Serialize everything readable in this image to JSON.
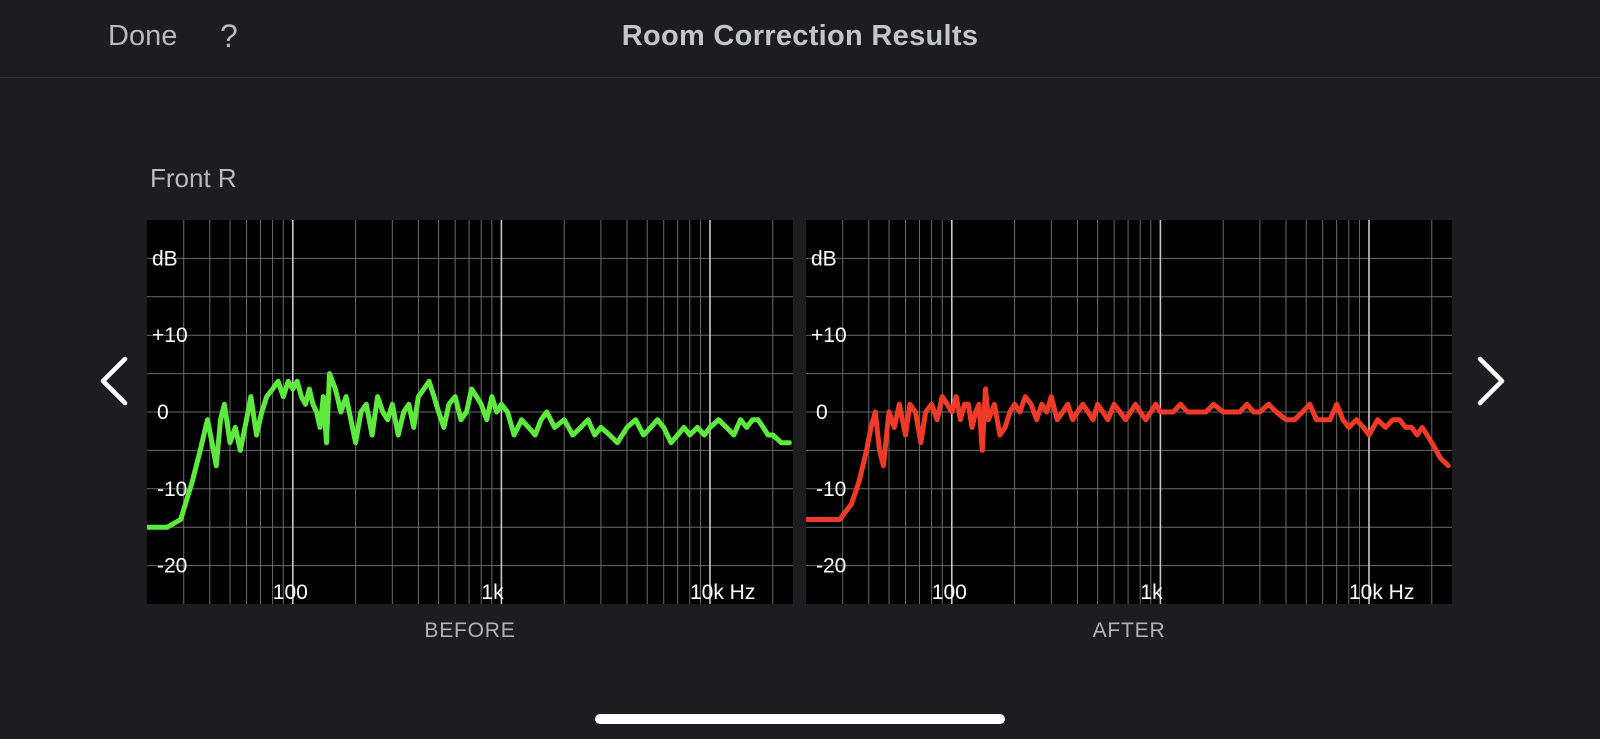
{
  "header": {
    "done_label": "Done",
    "help_label": "?",
    "title": "Room Correction Results"
  },
  "speaker_label": "Front R",
  "nav": {
    "prev_icon": "chevron-left-icon",
    "next_icon": "chevron-right-icon"
  },
  "chart_data": [
    {
      "type": "line",
      "caption": "BEFORE",
      "color": "#5eea3c",
      "x_scale": "log",
      "xlim": [
        20,
        25000
      ],
      "ylim": [
        -25,
        25
      ],
      "x_ticks": [
        {
          "value": 100,
          "label": "100"
        },
        {
          "value": 1000,
          "label": "1k"
        },
        {
          "value": 10000,
          "label": "10k Hz"
        }
      ],
      "y_ticks": [
        {
          "value": 20,
          "label": "dB"
        },
        {
          "value": 10,
          "label": "+10"
        },
        {
          "value": 0,
          "label": "0"
        },
        {
          "value": -10,
          "label": "-10"
        },
        {
          "value": -20,
          "label": "-20"
        }
      ],
      "grid": true,
      "x": [
        20,
        25,
        29,
        33,
        36,
        39,
        41,
        43,
        45,
        47,
        50,
        53,
        56,
        60,
        63,
        67,
        71,
        75,
        80,
        85,
        90,
        95,
        100,
        105,
        110,
        115,
        120,
        125,
        130,
        135,
        140,
        145,
        150,
        160,
        170,
        180,
        190,
        200,
        212,
        225,
        240,
        255,
        270,
        285,
        300,
        320,
        340,
        360,
        380,
        400,
        425,
        450,
        475,
        500,
        530,
        560,
        600,
        640,
        680,
        720,
        760,
        800,
        850,
        900,
        950,
        1000,
        1070,
        1150,
        1250,
        1350,
        1450,
        1550,
        1650,
        1800,
        2000,
        2200,
        2400,
        2600,
        2800,
        3000,
        3300,
        3600,
        4000,
        4400,
        4800,
        5200,
        5600,
        6000,
        6500,
        7000,
        7500,
        8000,
        8700,
        9400,
        10000,
        11000,
        12000,
        13000,
        14000,
        15000,
        16000,
        17000,
        18000,
        19000,
        20000,
        22000,
        24000
      ],
      "y": [
        -15,
        -15,
        -14,
        -9,
        -5,
        -1,
        -4,
        -7,
        -1,
        1,
        -4,
        -2,
        -5,
        -1,
        2,
        -3,
        0,
        2,
        3,
        4,
        2,
        4,
        3,
        4,
        2,
        1,
        3,
        1,
        0,
        -2,
        2,
        -4,
        5,
        3,
        0,
        2,
        -1,
        -4,
        0,
        1,
        -3,
        2,
        0,
        -1,
        1,
        -3,
        0,
        1,
        -2,
        2,
        3,
        4,
        2,
        0,
        -2,
        1,
        2,
        -1,
        0,
        3,
        2,
        1,
        -1,
        2,
        0,
        1,
        0,
        -3,
        -1,
        -2,
        -3,
        -1,
        0,
        -2,
        -1,
        -3,
        -2,
        -1,
        -3,
        -2,
        -3,
        -4,
        -2,
        -1,
        -3,
        -2,
        -1,
        -2,
        -4,
        -3,
        -2,
        -3,
        -2,
        -3,
        -2,
        -1,
        -2,
        -3,
        -1,
        -2,
        -1,
        -1,
        -2,
        -3,
        -3,
        -4,
        -4
      ]
    },
    {
      "type": "line",
      "caption": "AFTER",
      "color": "#f03a28",
      "x_scale": "log",
      "xlim": [
        20,
        25000
      ],
      "ylim": [
        -25,
        25
      ],
      "x_ticks": [
        {
          "value": 100,
          "label": "100"
        },
        {
          "value": 1000,
          "label": "1k"
        },
        {
          "value": 10000,
          "label": "10k Hz"
        }
      ],
      "y_ticks": [
        {
          "value": 20,
          "label": "dB"
        },
        {
          "value": 10,
          "label": "+10"
        },
        {
          "value": 0,
          "label": "0"
        },
        {
          "value": -10,
          "label": "-10"
        },
        {
          "value": -20,
          "label": "-20"
        }
      ],
      "grid": true,
      "x": [
        20,
        25,
        29,
        33,
        36,
        39,
        41,
        43,
        45,
        47,
        50,
        53,
        56,
        60,
        63,
        67,
        71,
        75,
        80,
        85,
        90,
        95,
        100,
        105,
        110,
        115,
        120,
        125,
        130,
        135,
        140,
        145,
        150,
        160,
        170,
        180,
        190,
        200,
        212,
        225,
        240,
        255,
        270,
        285,
        300,
        320,
        340,
        360,
        380,
        400,
        425,
        450,
        475,
        500,
        530,
        560,
        600,
        640,
        680,
        720,
        760,
        800,
        850,
        900,
        950,
        1000,
        1070,
        1150,
        1250,
        1350,
        1450,
        1550,
        1650,
        1800,
        2000,
        2200,
        2400,
        2600,
        2800,
        3000,
        3300,
        3600,
        4000,
        4400,
        4800,
        5200,
        5600,
        6000,
        6500,
        7000,
        7500,
        8000,
        8700,
        9400,
        10000,
        11000,
        12000,
        13000,
        14000,
        15000,
        16000,
        17000,
        18000,
        19000,
        20000,
        22000,
        24000
      ],
      "y": [
        -14,
        -14,
        -14,
        -12,
        -9,
        -5,
        -2,
        0,
        -5,
        -7,
        0,
        -2,
        1,
        -3,
        1,
        0,
        -4,
        0,
        1,
        -1,
        2,
        1,
        0,
        2,
        -1,
        1,
        1,
        -2,
        0,
        1,
        -5,
        3,
        -1,
        1,
        -3,
        -2,
        0,
        1,
        0,
        2,
        1,
        -1,
        1,
        0,
        2,
        -1,
        0,
        1,
        -1,
        0,
        1,
        0,
        -1,
        1,
        0,
        -1,
        1,
        0,
        -1,
        0,
        1,
        0,
        -1,
        0,
        1,
        0,
        0,
        0,
        1,
        0,
        0,
        0,
        0,
        1,
        0,
        0,
        0,
        1,
        0,
        0,
        1,
        0,
        -1,
        -1,
        0,
        1,
        -1,
        -1,
        -1,
        1,
        -1,
        -2,
        -1,
        -2,
        -3,
        -1,
        -2,
        -1,
        -1,
        -2,
        -2,
        -3,
        -2,
        -3,
        -4,
        -6,
        -7
      ]
    }
  ]
}
